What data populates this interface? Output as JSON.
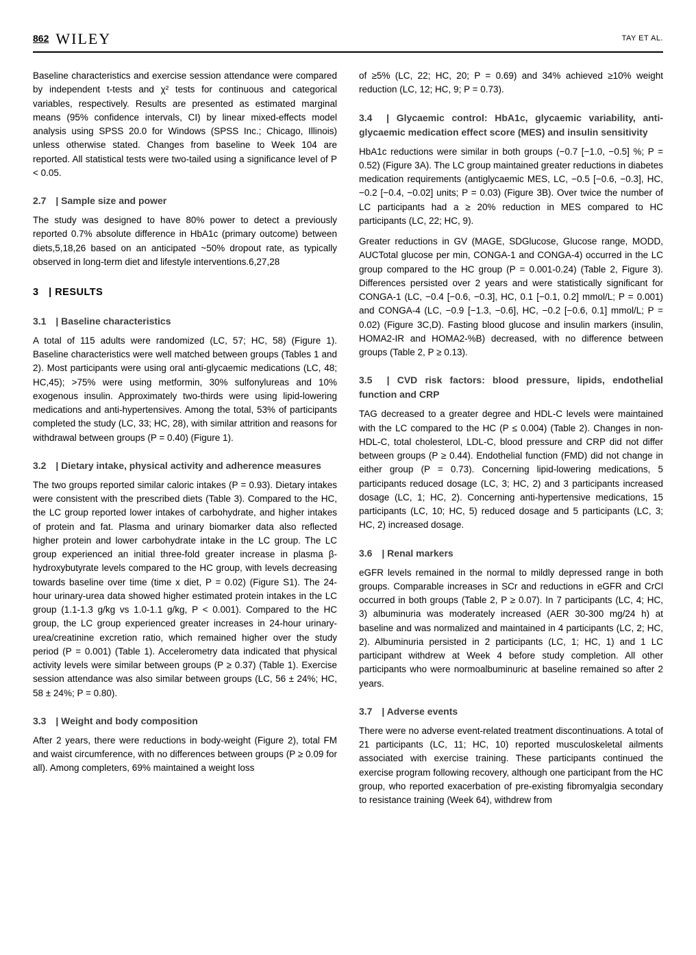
{
  "header": {
    "page_number": "862",
    "journal": "WILEY",
    "authors": "TAY ET AL."
  },
  "left_intro": "Baseline characteristics and exercise session attendance were compared by independent t-tests and χ² tests for continuous and categorical variables, respectively. Results are presented as estimated marginal means (95% confidence intervals, CI) by linear mixed-effects model analysis using SPSS 20.0 for Windows (SPSS Inc.; Chicago, Illinois) unless otherwise stated. Changes from baseline to Week 104 are reported. All statistical tests were two-tailed using a significance level of P < 0.05.",
  "s27": {
    "heading_num": "2.7",
    "heading_title": "Sample size and power",
    "body": "The study was designed to have 80% power to detect a previously reported 0.7% absolute difference in HbA1c (primary outcome) between diets,5,18,26 based on an anticipated ~50% dropout rate, as typically observed in long-term diet and lifestyle interventions.6,27,28"
  },
  "s3": {
    "heading_num": "3",
    "heading_title": "RESULTS"
  },
  "s31": {
    "heading_num": "3.1",
    "heading_title": "Baseline characteristics",
    "body": "A total of 115 adults were randomized (LC, 57; HC, 58) (Figure 1). Baseline characteristics were well matched between groups (Tables 1 and 2). Most participants were using oral anti-glycaemic medications (LC, 48; HC,45); >75% were using metformin, 30% sulfonylureas and 10% exogenous insulin. Approximately two-thirds were using lipid-lowering medications and anti-hypertensives. Among the total, 53% of participants completed the study (LC, 33; HC, 28), with similar attrition and reasons for withdrawal between groups (P = 0.40) (Figure 1)."
  },
  "s32": {
    "heading_num": "3.2",
    "heading_title": "Dietary intake, physical activity and adherence measures",
    "body": "The two groups reported similar caloric intakes (P = 0.93). Dietary intakes were consistent with the prescribed diets (Table 3). Compared to the HC, the LC group reported lower intakes of carbohydrate, and higher intakes of protein and fat. Plasma and urinary biomarker data also reflected higher protein and lower carbohydrate intake in the LC group. The LC group experienced an initial three-fold greater increase in plasma β-hydroxybutyrate levels compared to the HC group, with levels decreasing towards baseline over time (time x diet, P = 0.02) (Figure S1). The 24-hour urinary-urea data showed higher estimated protein intakes in the LC group (1.1-1.3 g/kg vs 1.0-1.1 g/kg, P < 0.001). Compared to the HC group, the LC group experienced greater increases in 24-hour urinary-urea/creatinine excretion ratio, which remained higher over the study period (P = 0.001) (Table 1). Accelerometry data indicated that physical activity levels were similar between groups (P ≥ 0.37) (Table 1). Exercise session attendance was also similar between groups (LC, 56 ± 24%; HC, 58 ± 24%; P = 0.80)."
  },
  "s33": {
    "heading_num": "3.3",
    "heading_title": "Weight and body composition",
    "body1": "After 2 years, there were reductions in body-weight (Figure 2), total FM and waist circumference, with no differences between groups (P ≥ 0.09 for all). Among completers, 69% maintained a weight loss",
    "body2": "of ≥5% (LC, 22; HC, 20; P = 0.69) and 34% achieved ≥10% weight reduction (LC, 12; HC, 9; P = 0.73)."
  },
  "s34": {
    "heading_num": "3.4",
    "heading_title": "Glycaemic control: HbA1c, glycaemic variability, anti-glycaemic medication effect score (MES) and insulin sensitivity",
    "p1": "HbA1c reductions were similar in both groups (−0.7 [−1.0, −0.5] %; P = 0.52) (Figure 3A). The LC group maintained greater reductions in diabetes medication requirements (antiglycaemic MES, LC, −0.5 [−0.6, −0.3], HC, −0.2 [−0.4, −0.02] units; P = 0.03) (Figure 3B). Over twice the number of LC participants had a ≥ 20% reduction in MES compared to HC participants (LC, 22; HC, 9).",
    "p2": "Greater reductions in GV (MAGE, SDGlucose, Glucose range, MODD, AUCTotal glucose per min, CONGA-1 and CONGA-4) occurred in the LC group compared to the HC group (P = 0.001-0.24) (Table 2, Figure 3). Differences persisted over 2 years and were statistically significant for CONGA-1 (LC, −0.4 [−0.6, −0.3], HC, 0.1 [−0.1, 0.2] mmol/L; P = 0.001) and CONGA-4 (LC, −0.9 [−1.3, −0.6], HC, −0.2 [−0.6, 0.1] mmol/L; P = 0.02) (Figure 3C,D). Fasting blood glucose and insulin markers (insulin, HOMA2-IR and HOMA2-%B) decreased, with no difference between groups (Table 2, P ≥ 0.13)."
  },
  "s35": {
    "heading_num": "3.5",
    "heading_title": "CVD risk factors: blood pressure, lipids, endothelial function and CRP",
    "body": "TAG decreased to a greater degree and HDL-C levels were maintained with the LC compared to the HC (P ≤ 0.004) (Table 2). Changes in non-HDL-C, total cholesterol, LDL-C, blood pressure and CRP did not differ between groups (P ≥ 0.44). Endothelial function (FMD) did not change in either group (P = 0.73). Concerning lipid-lowering medications, 5 participants reduced dosage (LC, 3; HC, 2) and 3 participants increased dosage (LC, 1; HC, 2). Concerning anti-hypertensive medications, 15 participants (LC, 10; HC, 5) reduced dosage and 5 participants (LC, 3; HC, 2) increased dosage."
  },
  "s36": {
    "heading_num": "3.6",
    "heading_title": "Renal markers",
    "body": "eGFR levels remained in the normal to mildly depressed range in both groups. Comparable increases in SCr and reductions in eGFR and CrCl occurred in both groups (Table 2, P ≥ 0.07). In 7 participants (LC, 4; HC, 3) albuminuria was moderately increased (AER 30-300 mg/24 h) at baseline and was normalized and maintained in 4 participants (LC, 2; HC, 2). Albuminuria persisted in 2 participants (LC, 1; HC, 1) and 1 LC participant withdrew at Week 4 before study completion. All other participants who were normoalbuminuric at baseline remained so after 2 years."
  },
  "s37": {
    "heading_num": "3.7",
    "heading_title": "Adverse events",
    "body": "There were no adverse event-related treatment discontinuations. A total of 21 participants (LC, 11; HC, 10) reported musculoskeletal ailments associated with exercise training. These participants continued the exercise program following recovery, although one participant from the HC group, who reported exacerbation of pre-existing fibromyalgia secondary to resistance training (Week 64), withdrew from"
  },
  "sep": " | "
}
